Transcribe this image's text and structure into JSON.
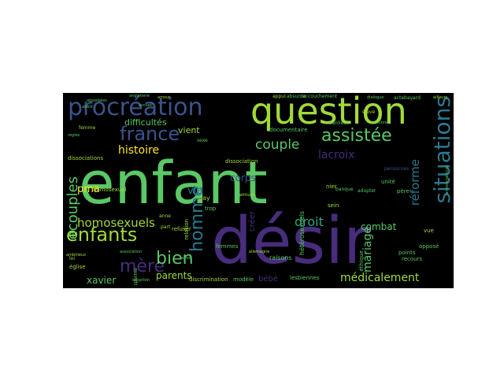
{
  "words": {
    "enfant": "enfant",
    "desir": "désir",
    "question": "question",
    "procreation": "procréation",
    "situations": "situations",
    "assistee": "assistée",
    "france": "france",
    "mere": "mère",
    "enfants": "enfants",
    "ecouples": "ecouples",
    "homosexuels": "homosexuels",
    "bien": "bien",
    "homme": "homme",
    "couple": "couple",
    "droit": "droit",
    "lacroix": "lacroix",
    "reforme": "réforme",
    "histoire": "histoire",
    "pma": "pma",
    "medicalement": "médicalement",
    "difficultes": "difficultés",
    "vient": "vient",
    "corps": "corps",
    "vie": "vie",
    "combat": "combat",
    "mariage": "mariage",
    "parents": "parents",
    "xavier": "xavier",
    "bebe": "bébé",
    "creer": "créer",
    "documentaire": "documentaire",
    "dissociation": "dissociation",
    "heterosexuels": "hétérosexuels",
    "homosexuel": "homosexuel",
    "gay": "gay",
    "trop": "trop",
    "relation": "relation",
    "refuser": "refuser",
    "femmes": "femmes",
    "lesbiennes": "lesbiennes",
    "discrimination": "discrimination",
    "modele": "modèle",
    "raisons": "raisons",
    "sein": "sein",
    "ethique": "éthique",
    "oppose": "opposé",
    "recours": "recours",
    "points": "points",
    "vue": "vue",
    "nier": "nier",
    "unite": "unité",
    "dissociations": "dissociations",
    "eglise": "église",
    "sperme": "sperme",
    "accouchement": "accouchement",
    "appui": "appui",
    "absurde": "absurde",
    "angleterre": "angleterre",
    "absorbees": "absorbées",
    "ambitieux": "ambitieux",
    "actebayard": "actebayard",
    "ailleurs": "ailleurs",
    "pere": "père",
    "adopter": "adopter",
    "banlieue": "banlieue",
    "personnes": "personnes",
    "banque": "banque",
    "sexe": "sexe",
    "loi": "loi",
    "femme": "femme",
    "regles": "règles",
    "association": "association",
    "anne": "anne",
    "part": "part",
    "eleve": "élève",
    "ameliorer": "améliorer",
    "aime": "aime",
    "allemagne": "allemagne",
    "adoption": "adoption",
    "accueil": "accueil",
    "amour": "amour",
    "dialogue": "dialogue",
    "annonciatrices": "annonciatrices",
    "abolir": "abolir",
    "attitude": "attitude"
  },
  "colors": {
    "background": "#000000",
    "green": "#5ac864",
    "lime": "#a0da39",
    "teal": "#2a788e",
    "teal2": "#22a884",
    "blue": "#3b528b",
    "purple": "#472d7b",
    "yellow": "#fde725",
    "cyan": "#21918c"
  }
}
